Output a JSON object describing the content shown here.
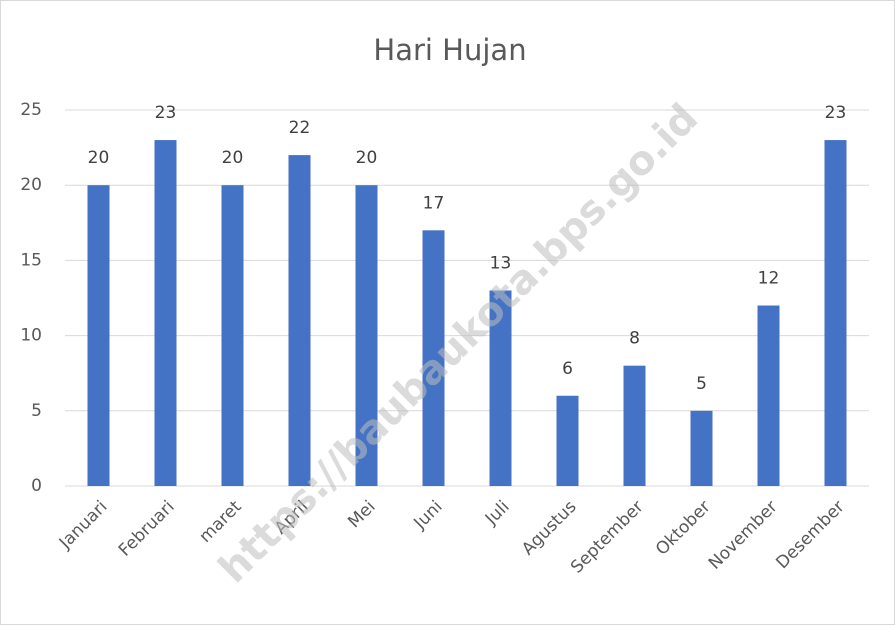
{
  "chart_data": {
    "type": "bar",
    "title": "Hari Hujan",
    "categories": [
      "Januari",
      "Februari",
      "maret",
      "April",
      "Mei",
      "Juni",
      "Juli",
      "Agustus",
      "September",
      "Oktober",
      "November",
      "Desember"
    ],
    "values": [
      20,
      23,
      20,
      22,
      20,
      17,
      13,
      6,
      8,
      5,
      12,
      23
    ],
    "color": "#4472c4",
    "ylim": [
      0,
      25
    ],
    "yticks": [
      0,
      5,
      10,
      15,
      20,
      25
    ],
    "grid": true,
    "watermark": "https://baubaukota.bps.go.id"
  }
}
